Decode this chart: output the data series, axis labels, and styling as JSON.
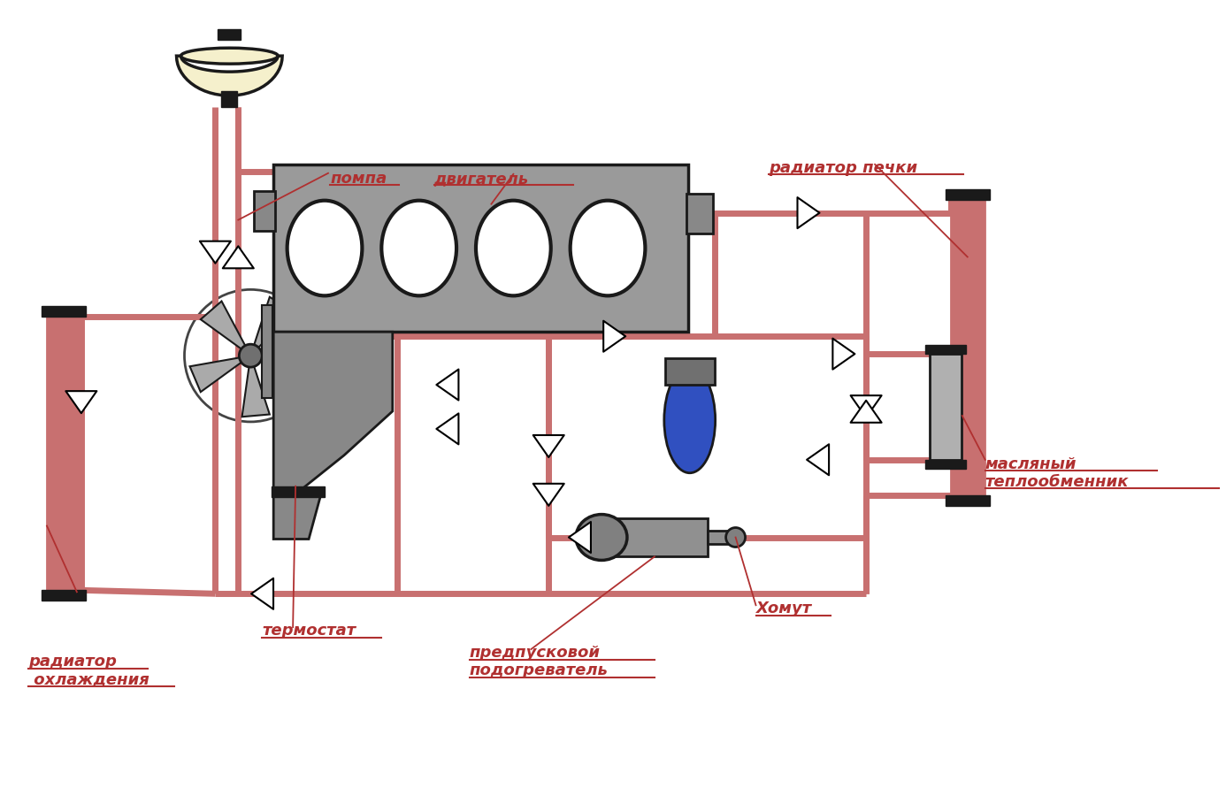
{
  "bg_color": "#ffffff",
  "pipe_color": "#c87070",
  "outline_color": "#1a1a1a",
  "gray_engine": "#9a9a9a",
  "gray_dark": "#606060",
  "gray_mid": "#888888",
  "gray_light": "#b8b8b8",
  "blue_filter": "#3050c0",
  "cream": "#f5f0cc",
  "text_color": "#b03030",
  "labels": {
    "pompa": "помпа",
    "dvigatel": "двигатель",
    "radiator_pechki": "радиатор печки",
    "maslyany_line1": "масляный",
    "maslyany_line2": "теплообменник",
    "homut": "Хомут",
    "predpuskovoy_line1": "предпусковой",
    "predpuskovoy_line2": "подогреватель",
    "termostat": "термостат",
    "radiator_ohla_line1": "радиатор",
    "radiator_ohla_line2": " охлаждения"
  }
}
